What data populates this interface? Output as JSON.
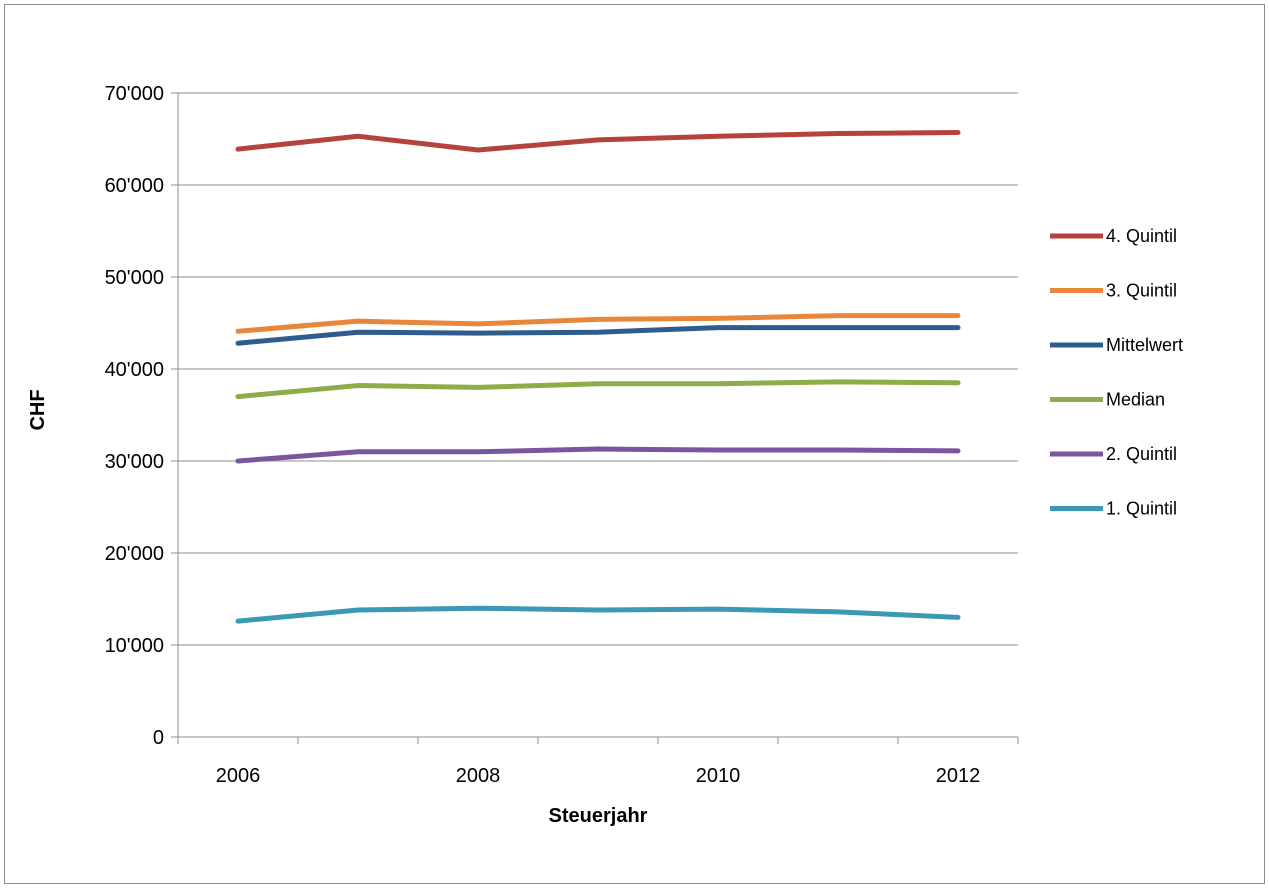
{
  "chart_data": {
    "type": "line",
    "title": "",
    "xlabel": "Steuerjahr",
    "ylabel": "CHF",
    "x": [
      2006,
      2007,
      2008,
      2009,
      2010,
      2011,
      2012
    ],
    "x_tick_labels": [
      "2006",
      "2008",
      "2010",
      "2012"
    ],
    "x_tick_values": [
      2006,
      2008,
      2010,
      2012
    ],
    "ylim": [
      0,
      70000
    ],
    "y_ticks": [
      0,
      10000,
      20000,
      30000,
      40000,
      50000,
      60000,
      70000
    ],
    "y_tick_labels": [
      "0",
      "10'000",
      "20'000",
      "30'000",
      "40'000",
      "50'000",
      "60'000",
      "70'000"
    ],
    "grid": "horizontal",
    "legend_position": "right",
    "series": [
      {
        "name": "4. Quintil",
        "color": "#b5433c",
        "values": [
          63900,
          65300,
          63800,
          64900,
          65300,
          65600,
          65700
        ]
      },
      {
        "name": "3. Quintil",
        "color": "#e8873b",
        "values": [
          44100,
          45200,
          44900,
          45400,
          45500,
          45800,
          45800
        ]
      },
      {
        "name": "Mittelwert",
        "color": "#2e5c8e",
        "values": [
          42800,
          44000,
          43900,
          44000,
          44500,
          44500,
          44500
        ]
      },
      {
        "name": "Median",
        "color": "#8cad4a",
        "values": [
          37000,
          38200,
          38000,
          38400,
          38400,
          38600,
          38500
        ]
      },
      {
        "name": "2. Quintil",
        "color": "#7a56a0",
        "values": [
          30000,
          31000,
          31000,
          31300,
          31200,
          31200,
          31100
        ]
      },
      {
        "name": "1. Quintil",
        "color": "#3a9ab5",
        "values": [
          12600,
          13800,
          14000,
          13800,
          13900,
          13600,
          13000
        ]
      }
    ]
  }
}
